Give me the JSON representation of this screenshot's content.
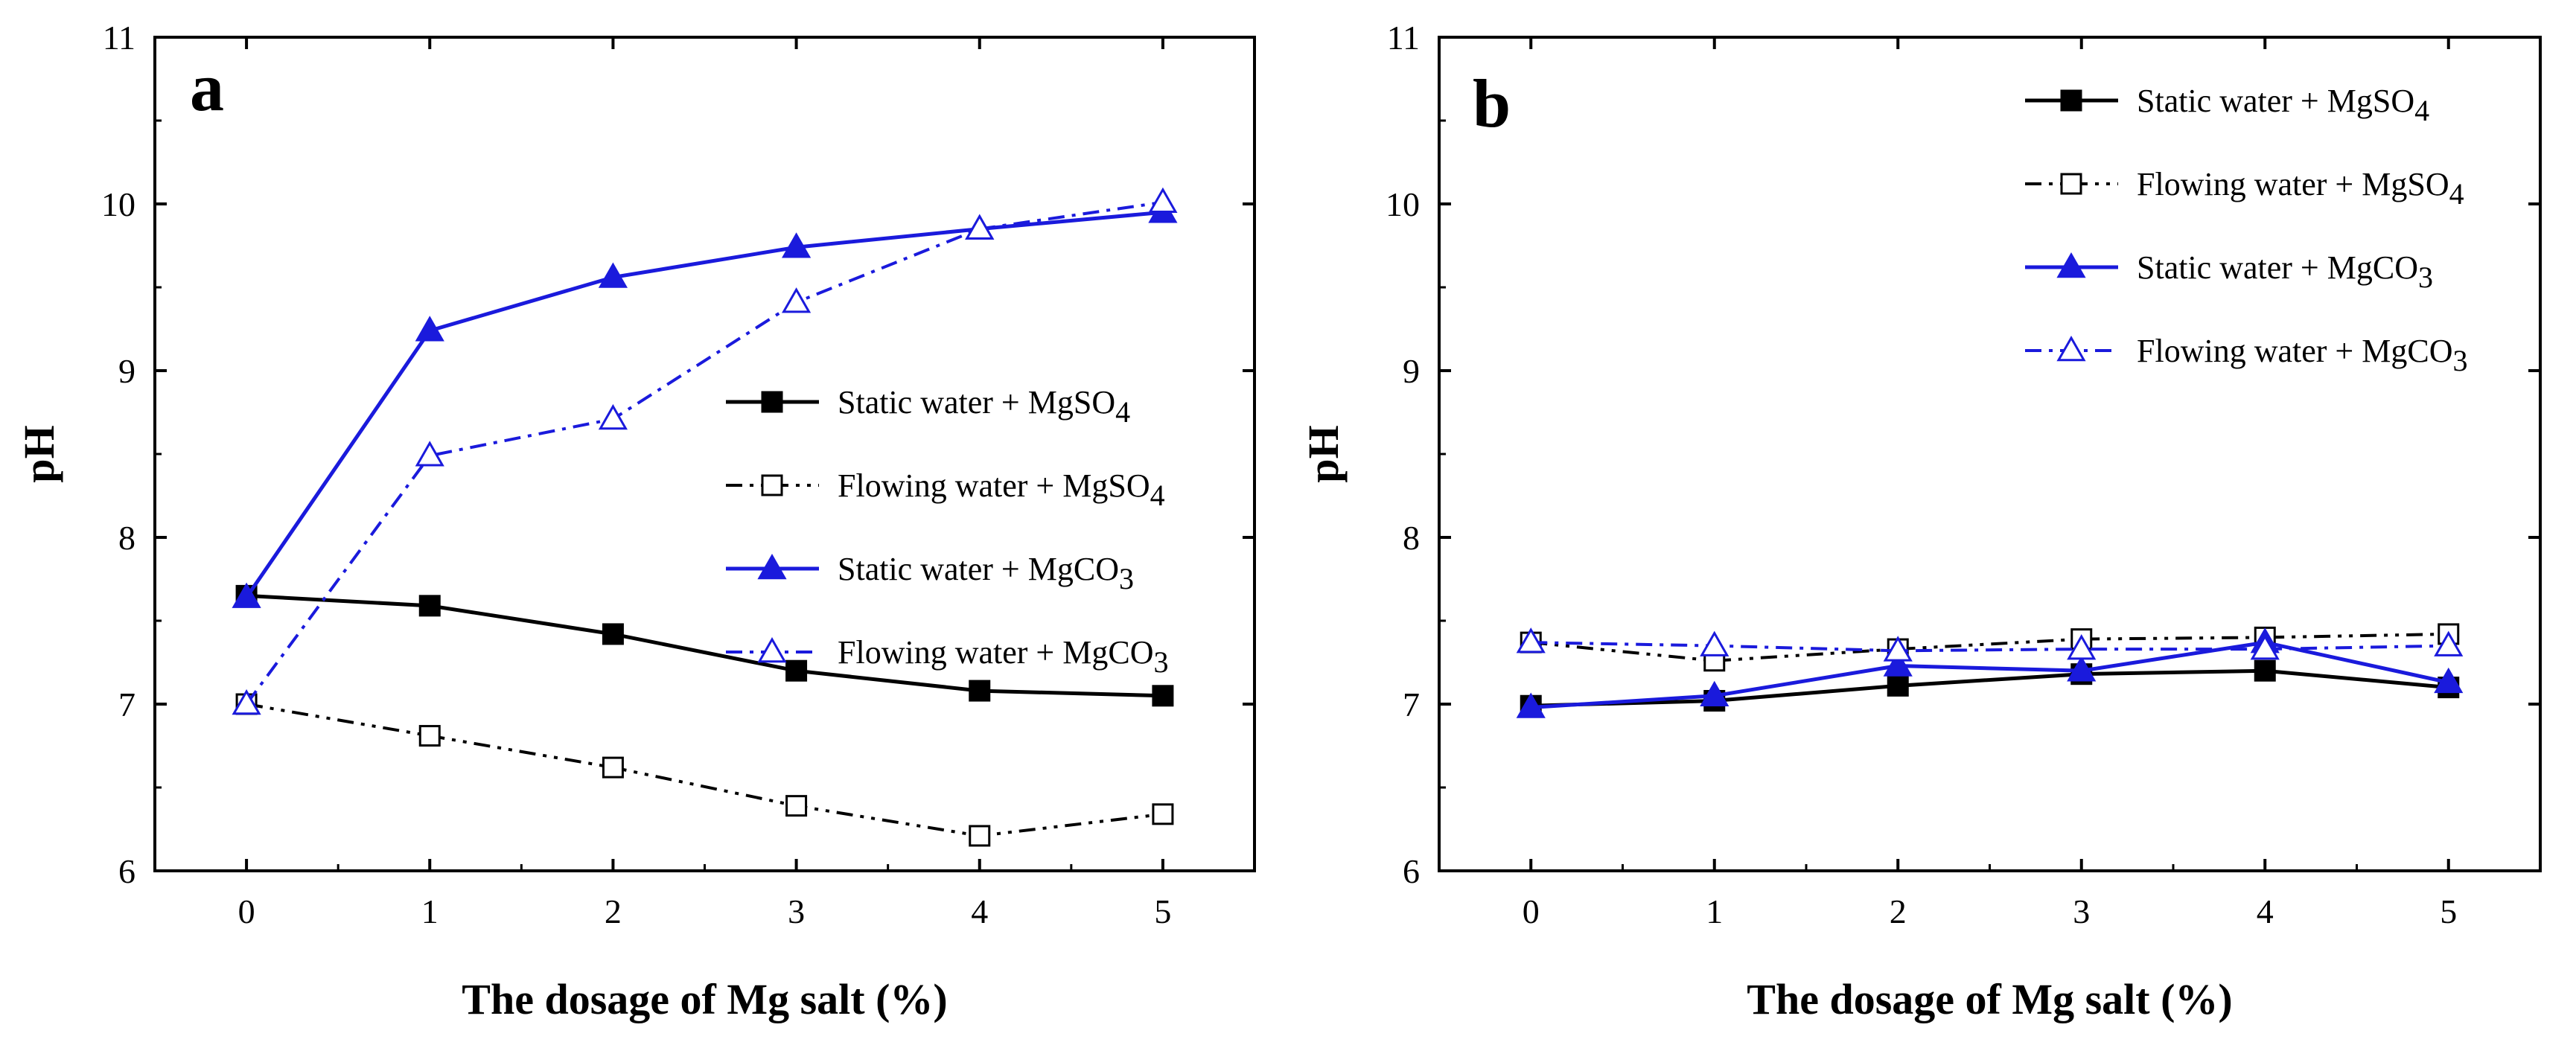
{
  "chart_data": [
    {
      "type": "line",
      "panel_label": "a",
      "xlabel": "The dosage of Mg salt (%)",
      "ylabel": "pH",
      "x": [
        0,
        1,
        2,
        3,
        4,
        5
      ],
      "xlim": [
        -0.5,
        5.5
      ],
      "ylim": [
        6,
        11
      ],
      "x_ticks": [
        "0",
        "1",
        "2",
        "3",
        "4",
        "5"
      ],
      "y_ticks": [
        "6",
        "7",
        "8",
        "9",
        "10",
        "11"
      ],
      "legend_position": "center-right",
      "series": [
        {
          "name": "Static water + MgSO",
          "subscript": "4",
          "color": "#000000",
          "line": "solid",
          "marker": "square-filled",
          "values": [
            7.65,
            7.59,
            7.42,
            7.2,
            7.08,
            7.05
          ]
        },
        {
          "name": "Flowing water + MgSO",
          "subscript": "4",
          "color": "#000000",
          "line": "dash-dot-dot",
          "marker": "square-open",
          "values": [
            7.0,
            6.81,
            6.62,
            6.39,
            6.21,
            6.34
          ]
        },
        {
          "name": "Static water + MgCO",
          "subscript": "3",
          "color": "#1a1adc",
          "line": "solid",
          "marker": "triangle-filled",
          "values": [
            7.64,
            9.24,
            9.56,
            9.74,
            9.85,
            9.95
          ]
        },
        {
          "name": "Flowing water + MgCO",
          "subscript": "3",
          "color": "#1a1adc",
          "line": "dash-dot",
          "marker": "triangle-open",
          "values": [
            7.0,
            8.49,
            8.71,
            9.41,
            9.85,
            10.01
          ]
        }
      ]
    },
    {
      "type": "line",
      "panel_label": "b",
      "xlabel": "The dosage of Mg salt (%)",
      "ylabel": "pH",
      "x": [
        0,
        1,
        2,
        3,
        4,
        5
      ],
      "xlim": [
        -0.5,
        5.5
      ],
      "ylim": [
        6,
        11
      ],
      "x_ticks": [
        "0",
        "1",
        "2",
        "3",
        "4",
        "5"
      ],
      "y_ticks": [
        "6",
        "7",
        "8",
        "9",
        "10",
        "11"
      ],
      "legend_position": "top-right",
      "series": [
        {
          "name": "Static water + MgSO",
          "subscript": "4",
          "color": "#000000",
          "line": "solid",
          "marker": "square-filled",
          "values": [
            6.99,
            7.02,
            7.11,
            7.18,
            7.2,
            7.1
          ]
        },
        {
          "name": "Flowing water + MgSO",
          "subscript": "4",
          "color": "#000000",
          "line": "dash-dot-dot",
          "marker": "square-open",
          "values": [
            7.37,
            7.26,
            7.33,
            7.39,
            7.4,
            7.42
          ]
        },
        {
          "name": "Static water + MgCO",
          "subscript": "3",
          "color": "#1a1adc",
          "line": "solid",
          "marker": "triangle-filled",
          "values": [
            6.98,
            7.05,
            7.23,
            7.2,
            7.37,
            7.13
          ]
        },
        {
          "name": "Flowing water + MgCO",
          "subscript": "3",
          "color": "#1a1adc",
          "line": "dash-dot",
          "marker": "triangle-open",
          "values": [
            7.37,
            7.35,
            7.32,
            7.33,
            7.33,
            7.35
          ]
        }
      ]
    }
  ]
}
